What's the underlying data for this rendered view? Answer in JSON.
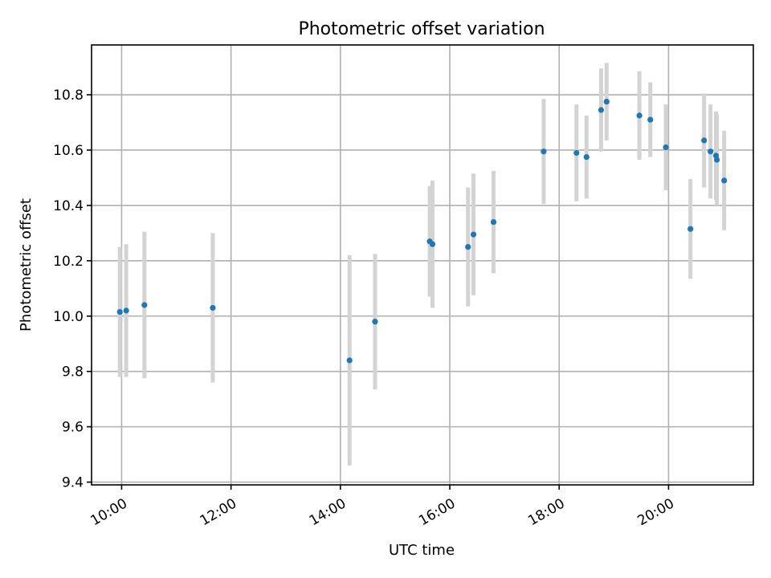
{
  "chart_data": {
    "type": "scatter",
    "title": "Photometric offset variation",
    "xlabel": "UTC time",
    "ylabel": "Photometric offset",
    "xlim": [
      "09:27",
      "21:33"
    ],
    "ylim": [
      9.39,
      10.98
    ],
    "x_ticks": [
      "10:00",
      "12:00",
      "14:00",
      "16:00",
      "18:00",
      "20:00"
    ],
    "y_ticks": [
      "9.4",
      "9.6",
      "9.8",
      "10.0",
      "10.2",
      "10.4",
      "10.6",
      "10.8"
    ],
    "grid": true,
    "colors": {
      "point": "#1f77b4",
      "errorbar": "#d3d3d3",
      "grid": "#b0b0b0"
    },
    "points": [
      {
        "x": "09:58",
        "y": 10.015,
        "err": 0.235
      },
      {
        "x": "10:05",
        "y": 10.02,
        "err": 0.24
      },
      {
        "x": "10:25",
        "y": 10.04,
        "err": 0.265
      },
      {
        "x": "11:40",
        "y": 10.03,
        "err": 0.27
      },
      {
        "x": "14:10",
        "y": 9.84,
        "err": 0.38
      },
      {
        "x": "14:38",
        "y": 9.98,
        "err": 0.245
      },
      {
        "x": "15:38",
        "y": 10.27,
        "err": 0.2
      },
      {
        "x": "15:41",
        "y": 10.26,
        "err": 0.23
      },
      {
        "x": "16:20",
        "y": 10.25,
        "err": 0.215
      },
      {
        "x": "16:26",
        "y": 10.295,
        "err": 0.22
      },
      {
        "x": "16:48",
        "y": 10.34,
        "err": 0.185
      },
      {
        "x": "17:43",
        "y": 10.595,
        "err": 0.19
      },
      {
        "x": "18:19",
        "y": 10.59,
        "err": 0.175
      },
      {
        "x": "18:30",
        "y": 10.575,
        "err": 0.15
      },
      {
        "x": "18:46",
        "y": 10.745,
        "err": 0.15
      },
      {
        "x": "18:52",
        "y": 10.775,
        "err": 0.14
      },
      {
        "x": "19:28",
        "y": 10.725,
        "err": 0.16
      },
      {
        "x": "19:40",
        "y": 10.71,
        "err": 0.135
      },
      {
        "x": "19:57",
        "y": 10.61,
        "err": 0.155
      },
      {
        "x": "20:24",
        "y": 10.315,
        "err": 0.18
      },
      {
        "x": "20:39",
        "y": 10.635,
        "err": 0.17
      },
      {
        "x": "20:46",
        "y": 10.595,
        "err": 0.17
      },
      {
        "x": "20:52",
        "y": 10.58,
        "err": 0.16
      },
      {
        "x": "20:53",
        "y": 10.565,
        "err": 0.165
      },
      {
        "x": "21:01",
        "y": 10.49,
        "err": 0.18
      }
    ]
  }
}
